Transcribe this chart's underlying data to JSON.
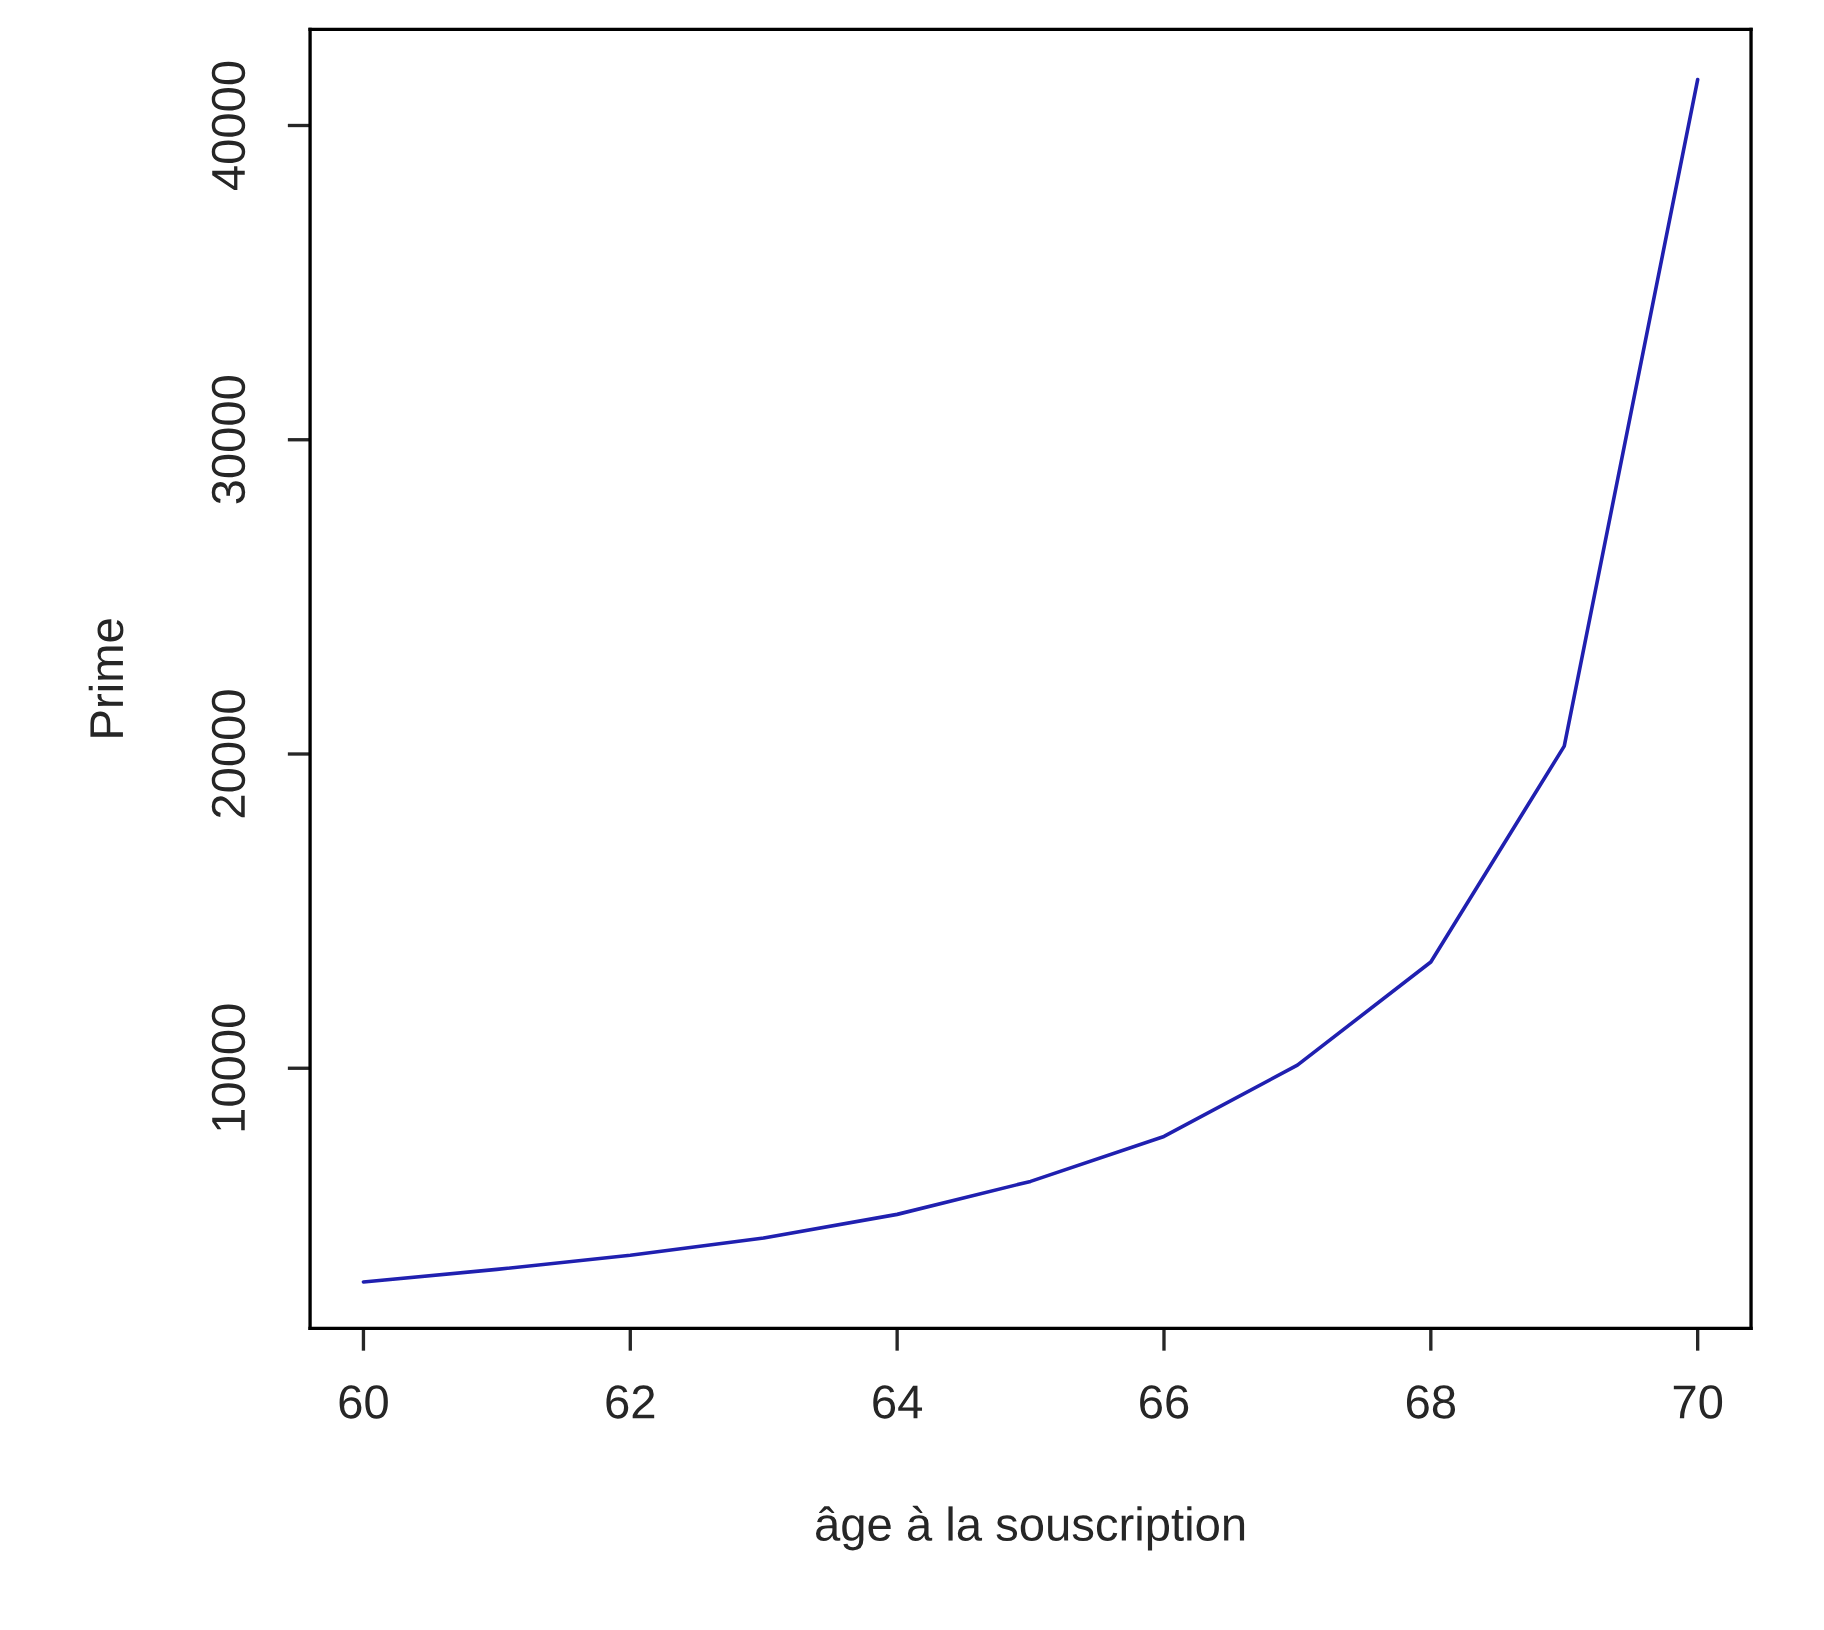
{
  "chart_data": {
    "type": "line",
    "xlabel": "âge à la souscription",
    "ylabel": "Prime",
    "x": [
      60,
      61,
      62,
      63,
      64,
      65,
      66,
      67,
      68,
      69,
      70
    ],
    "series": [
      {
        "color": "#2020b0",
        "values": [
          3200,
          3600,
          4050,
          4600,
          5350,
          6400,
          7830,
          10100,
          13380,
          20250,
          41460
        ]
      }
    ],
    "xlim": [
      59.6,
      70.4
    ],
    "ylim": [
      1720,
      43060
    ],
    "xticks": [
      60,
      62,
      64,
      66,
      68,
      70
    ],
    "yticks": [
      10000,
      20000,
      30000,
      40000
    ],
    "grid": false,
    "legend": false,
    "marker": "none",
    "line_style": "solid"
  }
}
